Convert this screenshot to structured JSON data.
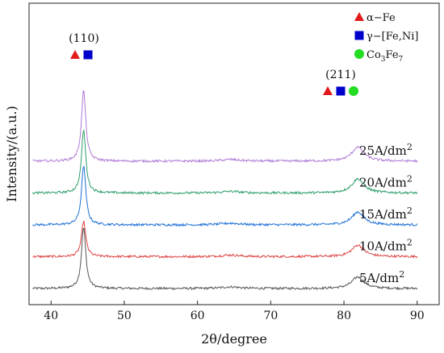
{
  "chart_data": {
    "type": "line",
    "xlabel": "2θ/degree",
    "ylabel": "Intensity/(a.u.)",
    "xlim": [
      37,
      93
    ],
    "x_ticks": [
      40,
      50,
      60,
      70,
      80,
      90
    ],
    "grid": false,
    "legend_position": "top-right",
    "legend": [
      {
        "label": "α−Fe",
        "marker": "triangle",
        "color": "#e31a1c"
      },
      {
        "label": "γ−[Fe,Ni]",
        "marker": "square",
        "color": "#0000cc"
      },
      {
        "label": "Co3Fe7",
        "marker": "circle",
        "color": "#22dd22"
      }
    ],
    "peak_annotations": [
      {
        "label": "(110)",
        "x": 44.4,
        "markers": [
          "triangle",
          "square"
        ]
      },
      {
        "label": "(211)",
        "x": 81.8,
        "markers": [
          "triangle",
          "square",
          "circle"
        ]
      }
    ],
    "series": [
      {
        "name": "5A/dm2",
        "color": "#555555",
        "baseline": 0,
        "peak110": 9.5,
        "peak211": 1.8
      },
      {
        "name": "10A/dm2",
        "color": "#dd4444",
        "baseline": 1,
        "peak110": 5.5,
        "peak211": 1.8
      },
      {
        "name": "15A/dm2",
        "color": "#1f6fd6",
        "baseline": 2,
        "peak110": 9.2,
        "peak211": 2.0
      },
      {
        "name": "20A/dm2",
        "color": "#2e9e6b",
        "baseline": 3,
        "peak110": 9.8,
        "peak211": 2.2
      },
      {
        "name": "25A/dm2",
        "color": "#b07ad6",
        "baseline": 4,
        "peak110": 11.0,
        "peak211": 2.2
      }
    ]
  }
}
